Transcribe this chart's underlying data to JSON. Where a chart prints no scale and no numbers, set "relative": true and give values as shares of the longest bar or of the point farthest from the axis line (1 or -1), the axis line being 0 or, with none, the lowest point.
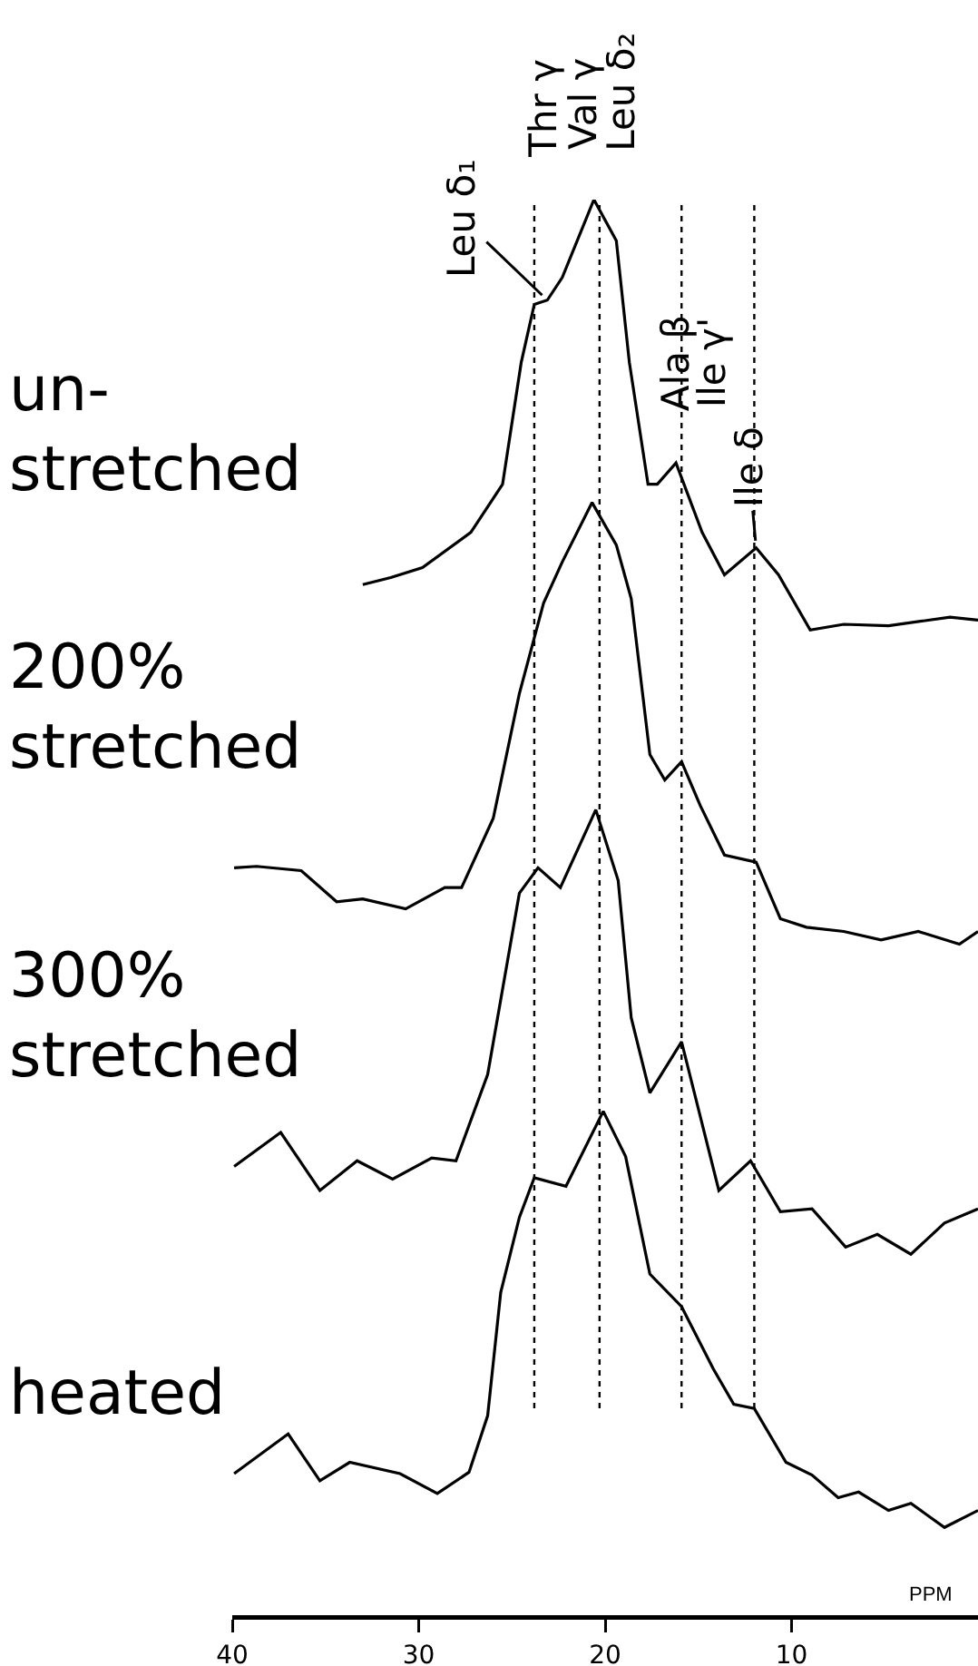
{
  "chart_data": {
    "type": "line",
    "relative": true,
    "tick_labels": "x",
    "xlim": [
      40,
      0
    ],
    "xticks": [
      40,
      30,
      20,
      10
    ],
    "xlabel": "PPM",
    "line_style": "solid",
    "series": [
      {
        "name": "un-\nstretched",
        "color": "#000000",
        "x": [
          33.0,
          31.5,
          29.8,
          27.2,
          25.5,
          24.5,
          23.8,
          23.1,
          22.3,
          20.6,
          19.4,
          18.7,
          17.7,
          17.2,
          16.2,
          14.8,
          13.6,
          11.9,
          10.7,
          9.0,
          7.2,
          4.8,
          1.5,
          0
        ],
        "values": [
          0.728,
          0.733,
          0.74,
          0.765,
          0.799,
          0.885,
          0.926,
          0.929,
          0.945,
          1.0,
          0.971,
          0.885,
          0.799,
          0.799,
          0.814,
          0.765,
          0.735,
          0.754,
          0.735,
          0.696,
          0.7,
          0.699,
          0.705,
          0.703
        ]
      },
      {
        "name": "200%\nstretched",
        "color": "#000000",
        "x": [
          39.9,
          38.7,
          36.3,
          34.4,
          33.0,
          30.7,
          28.6,
          27.7,
          26.0,
          24.6,
          23.3,
          22.3,
          20.7,
          19.4,
          18.6,
          17.6,
          16.8,
          15.9,
          14.9,
          13.6,
          11.9,
          10.6,
          9.2,
          7.2,
          5.2,
          3.2,
          1.0,
          0
        ],
        "values": [
          0.528,
          0.529,
          0.526,
          0.504,
          0.506,
          0.499,
          0.514,
          0.514,
          0.563,
          0.651,
          0.715,
          0.744,
          0.786,
          0.756,
          0.718,
          0.608,
          0.59,
          0.603,
          0.572,
          0.537,
          0.532,
          0.492,
          0.486,
          0.483,
          0.477,
          0.483,
          0.474,
          0.483
        ]
      },
      {
        "name": "300%\nstretched",
        "color": "#000000",
        "x": [
          39.9,
          37.4,
          35.3,
          33.3,
          31.4,
          29.3,
          28.0,
          26.3,
          24.6,
          23.6,
          22.4,
          20.5,
          19.3,
          18.6,
          17.6,
          15.9,
          13.9,
          12.2,
          10.6,
          8.9,
          7.1,
          5.4,
          3.6,
          1.8,
          0
        ],
        "values": [
          0.317,
          0.341,
          0.3,
          0.321,
          0.308,
          0.323,
          0.321,
          0.382,
          0.51,
          0.528,
          0.514,
          0.569,
          0.519,
          0.422,
          0.369,
          0.405,
          0.3,
          0.321,
          0.285,
          0.287,
          0.26,
          0.269,
          0.255,
          0.277,
          0.287
        ]
      },
      {
        "name": "heated",
        "color": "#000000",
        "x": [
          39.9,
          37.0,
          35.3,
          33.7,
          31.0,
          29.0,
          27.3,
          26.3,
          25.6,
          24.6,
          23.8,
          22.1,
          20.1,
          18.9,
          17.6,
          15.9,
          14.2,
          13.1,
          12.0,
          10.3,
          8.9,
          7.5,
          6.4,
          4.8,
          3.6,
          1.8,
          0
        ],
        "values": [
          0.1,
          0.128,
          0.095,
          0.108,
          0.1,
          0.086,
          0.101,
          0.141,
          0.228,
          0.281,
          0.309,
          0.303,
          0.356,
          0.324,
          0.241,
          0.218,
          0.174,
          0.149,
          0.146,
          0.108,
          0.099,
          0.083,
          0.087,
          0.074,
          0.079,
          0.062,
          0.074
        ]
      }
    ],
    "ref_lines": [
      {
        "axis": "x",
        "value": 23.8,
        "color": "#000000",
        "line_style": "dotted"
      },
      {
        "axis": "x",
        "value": 20.3,
        "color": "#000000",
        "line_style": "dotted"
      },
      {
        "axis": "x",
        "value": 15.9,
        "color": "#000000",
        "line_style": "dotted"
      },
      {
        "axis": "x",
        "value": 12.0,
        "color": "#000000",
        "line_style": "dotted"
      }
    ],
    "annotations": [
      {
        "text": "Leu δ₁",
        "x": 23.1,
        "y": 0.929
      },
      {
        "text": "Thr γ",
        "x": 20.6,
        "y": 1.0
      },
      {
        "text": "Val γ",
        "x": 20.6,
        "y": 1.0
      },
      {
        "text": "Leu δ₂",
        "x": 20.6,
        "y": 1.0
      },
      {
        "text": "Ala β",
        "x": 16.2,
        "y": 0.814
      },
      {
        "text": "Ile γ'",
        "x": 16.2,
        "y": 0.814
      },
      {
        "text": "Ile δ",
        "x": 11.9,
        "y": 0.754
      }
    ]
  }
}
